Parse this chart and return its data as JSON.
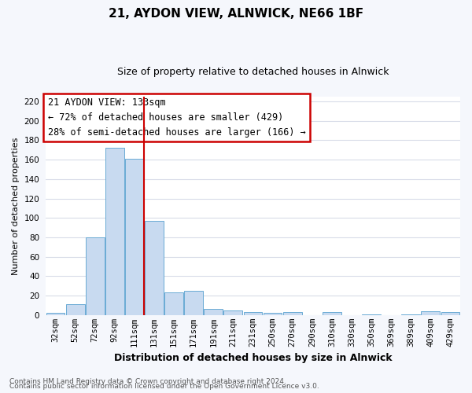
{
  "title": "21, AYDON VIEW, ALNWICK, NE66 1BF",
  "subtitle": "Size of property relative to detached houses in Alnwick",
  "xlabel": "Distribution of detached houses by size in Alnwick",
  "ylabel": "Number of detached properties",
  "bar_labels": [
    "32sqm",
    "52sqm",
    "72sqm",
    "92sqm",
    "111sqm",
    "131sqm",
    "151sqm",
    "171sqm",
    "191sqm",
    "211sqm",
    "231sqm",
    "250sqm",
    "270sqm",
    "290sqm",
    "310sqm",
    "330sqm",
    "350sqm",
    "369sqm",
    "389sqm",
    "409sqm",
    "429sqm"
  ],
  "bar_heights": [
    2,
    11,
    80,
    172,
    161,
    97,
    23,
    25,
    6,
    5,
    3,
    2,
    3,
    0,
    3,
    0,
    1,
    0,
    1,
    4,
    3
  ],
  "bar_color": "#c8daf0",
  "bar_edge_color": "#6aaad4",
  "vline_color": "#cc0000",
  "vline_x": 4.5,
  "annotation_title": "21 AYDON VIEW: 133sqm",
  "annotation_line1": "← 72% of detached houses are smaller (429)",
  "annotation_line2": "28% of semi-detached houses are larger (166) →",
  "annotation_box_edge_color": "#cc0000",
  "ylim": [
    0,
    225
  ],
  "yticks": [
    0,
    20,
    40,
    60,
    80,
    100,
    120,
    140,
    160,
    180,
    200,
    220
  ],
  "footer1": "Contains HM Land Registry data © Crown copyright and database right 2024.",
  "footer2": "Contains public sector information licensed under the Open Government Licence v3.0.",
  "plot_bg_color": "#ffffff",
  "fig_bg_color": "#f5f7fc",
  "grid_color": "#d8dce8",
  "title_fontsize": 11,
  "subtitle_fontsize": 9,
  "ylabel_fontsize": 8,
  "xlabel_fontsize": 9,
  "tick_fontsize": 7.5,
  "footer_fontsize": 6.5,
  "annotation_fontsize": 8.5
}
